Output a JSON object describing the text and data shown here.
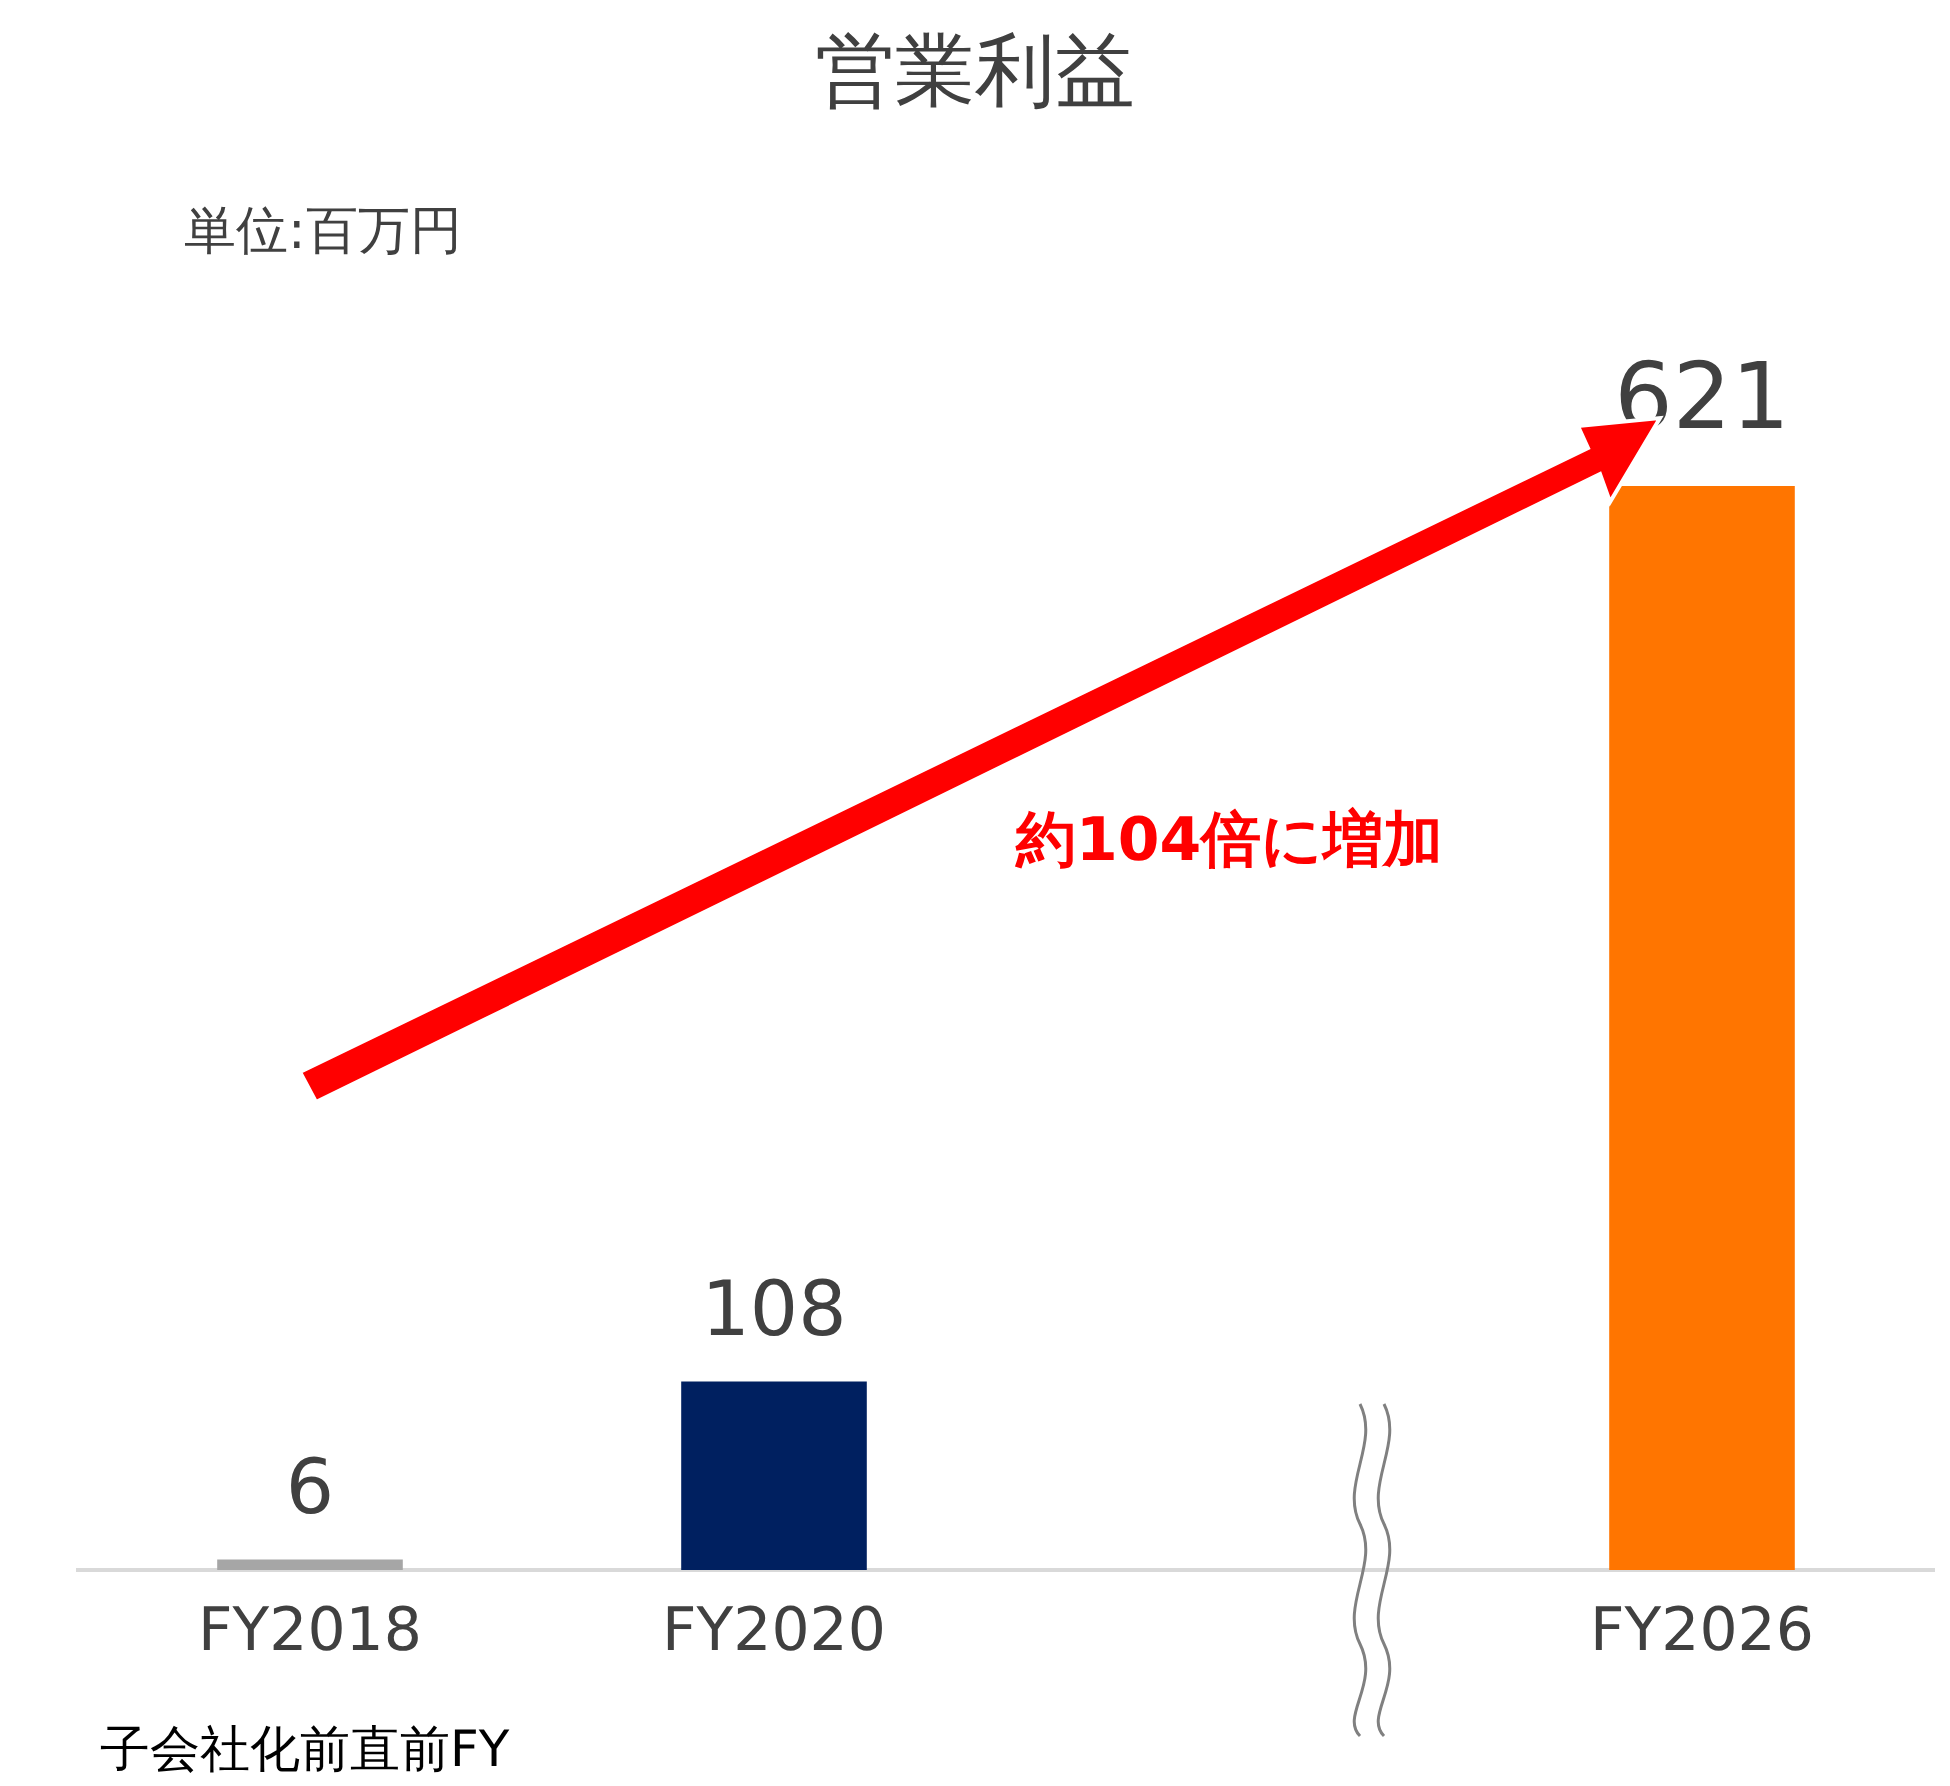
{
  "chart_data": {
    "type": "bar",
    "title": "営業利益",
    "categories": [
      "FY2018",
      "FY2020",
      null,
      "FY2026"
    ],
    "values": [
      6,
      108,
      null,
      621
    ],
    "colors": [
      "#a6a6a6",
      "#002060",
      "#ffffff",
      "#ff7500"
    ],
    "data_labels": true,
    "tick_labels": "x",
    "grid": false,
    "legend": false,
    "annotations": [
      "単位:百万円",
      "約104倍に増加",
      "子会社化前直前FY"
    ]
  }
}
